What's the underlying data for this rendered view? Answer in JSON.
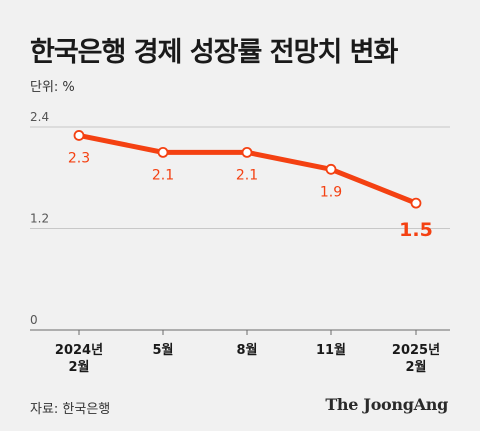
{
  "title": "한국은행 경제 성장률 전망치 변화",
  "unit_label": "단위: %",
  "source": "자료: 한국은행",
  "brand": "The JoongAng",
  "colors": {
    "line": "#f44112",
    "text": "#1a1a1a",
    "grid": "#c8c8c8",
    "background": "#f1f1f1"
  },
  "chart_data": {
    "type": "line",
    "title": "한국은행 경제 성장률 전망치 변화",
    "categories": [
      [
        "2024년",
        "2월"
      ],
      [
        "5월"
      ],
      [
        "8월"
      ],
      [
        "11월"
      ],
      [
        "2025년",
        "2월"
      ]
    ],
    "values": [
      2.3,
      2.1,
      2.1,
      1.9,
      1.5
    ],
    "value_labels": [
      "2.3",
      "2.1",
      "2.1",
      "1.9",
      "1.5"
    ],
    "highlight_index": 4,
    "yticks": [
      0,
      1.2,
      2.4
    ],
    "ytick_labels": [
      "0",
      "1.2",
      "2.4"
    ],
    "ylim": [
      0,
      2.4
    ],
    "grid": true,
    "xlabel": "",
    "ylabel": "%"
  }
}
